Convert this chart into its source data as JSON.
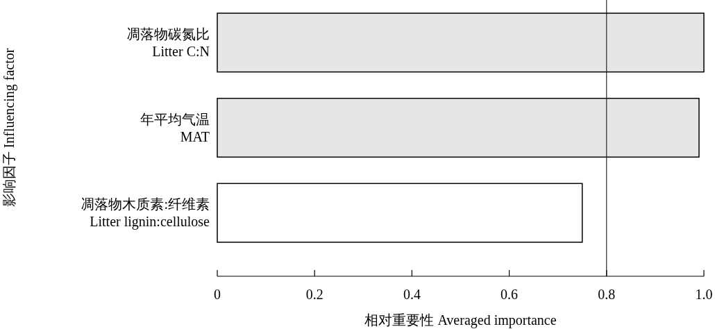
{
  "chart_data": {
    "type": "bar",
    "orientation": "horizontal",
    "xlabel": "相对重要性 Averaged importance",
    "ylabel": "影响因子 Influencing factor",
    "categories": [
      "凋落物碳氮比\nLitter C:N",
      "年平均气温\nMAT",
      "凋落物木质素:纤维素\nLitter lignin:cellulose"
    ],
    "values": [
      1.0,
      0.99,
      0.75
    ],
    "colors": [
      "#e6e6e6",
      "#e6e6e6",
      "#ffffff"
    ],
    "xlim": [
      0,
      1
    ],
    "xticks": [
      0,
      0.2,
      0.4,
      0.6,
      0.8,
      {
        "value": 1,
        "label": "1.0"
      }
    ],
    "ref_lines": [
      {
        "axis": "x",
        "value": 0.8,
        "color": "#000000"
      }
    ]
  }
}
